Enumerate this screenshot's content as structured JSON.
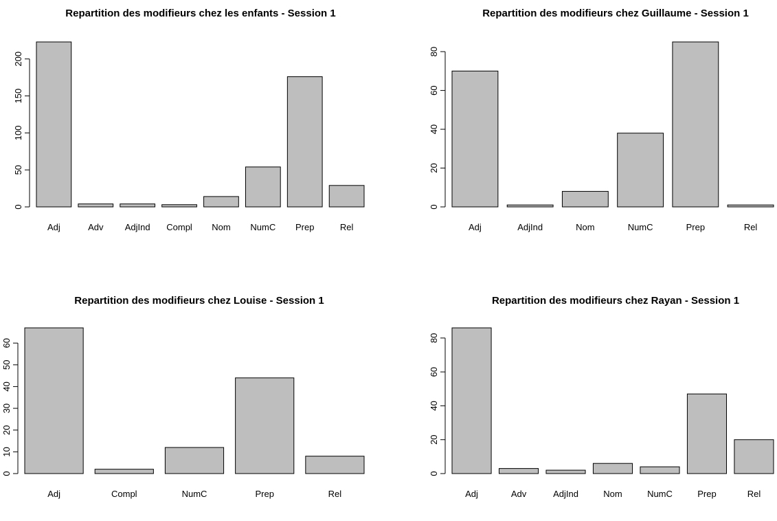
{
  "chart_data": [
    {
      "type": "bar",
      "title": "Repartition des modifieurs chez les enfants - Session 1",
      "xlabel": "",
      "ylabel": "",
      "categories": [
        "Adj",
        "Adv",
        "AdjInd",
        "Compl",
        "Nom",
        "NumC",
        "Prep",
        "Rel"
      ],
      "values": [
        223,
        4,
        4,
        3,
        14,
        54,
        176,
        29
      ],
      "yticks": [
        0,
        50,
        100,
        150,
        200
      ],
      "ylim": [
        0,
        223
      ],
      "bar_color": "#bebebe",
      "grid": false,
      "legend": "none"
    },
    {
      "type": "bar",
      "title": "Repartition des modifieurs chez Guillaume - Session 1",
      "xlabel": "",
      "ylabel": "",
      "categories": [
        "Adj",
        "AdjInd",
        "Nom",
        "NumC",
        "Prep",
        "Rel"
      ],
      "values": [
        70,
        1,
        8,
        38,
        85,
        1
      ],
      "yticks": [
        0,
        20,
        40,
        60,
        80
      ],
      "ylim": [
        0,
        85
      ],
      "bar_color": "#bebebe",
      "grid": false,
      "legend": "none"
    },
    {
      "type": "bar",
      "title": "Repartition des modifieurs chez Louise - Session 1",
      "xlabel": "",
      "ylabel": "",
      "categories": [
        "Adj",
        "Compl",
        "NumC",
        "Prep",
        "Rel"
      ],
      "values": [
        67,
        2,
        12,
        44,
        8
      ],
      "yticks": [
        0,
        10,
        20,
        30,
        40,
        50,
        60
      ],
      "ylim": [
        0,
        67
      ],
      "bar_color": "#bebebe",
      "grid": false,
      "legend": "none"
    },
    {
      "type": "bar",
      "title": "Repartition des modifieurs chez Rayan - Session 1",
      "xlabel": "",
      "ylabel": "",
      "categories": [
        "Adj",
        "Adv",
        "AdjInd",
        "Nom",
        "NumC",
        "Prep",
        "Rel"
      ],
      "values": [
        86,
        3,
        2,
        6,
        4,
        47,
        20
      ],
      "yticks": [
        0,
        20,
        40,
        60,
        80
      ],
      "ylim": [
        0,
        86
      ],
      "bar_color": "#bebebe",
      "grid": false,
      "legend": "none"
    }
  ]
}
